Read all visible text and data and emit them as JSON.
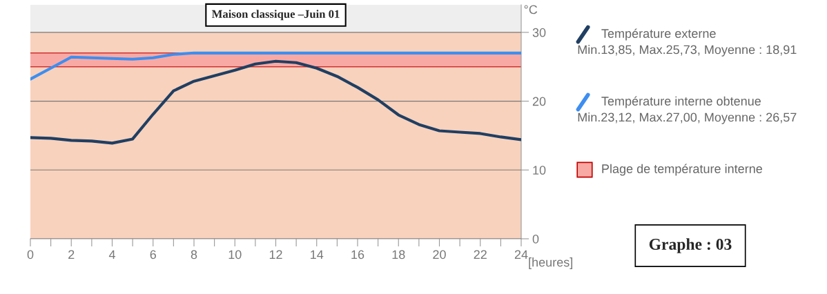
{
  "chart_data": {
    "type": "line",
    "title": "Maison classique –Juin 01",
    "xlabel": "[heures]",
    "ylabel": "°C",
    "x": [
      0,
      1,
      2,
      3,
      4,
      5,
      6,
      7,
      8,
      9,
      10,
      11,
      12,
      13,
      14,
      15,
      16,
      17,
      18,
      19,
      20,
      21,
      22,
      23,
      24
    ],
    "series": [
      {
        "name": "Température externe",
        "color": "#203f63",
        "values": [
          14.7,
          14.6,
          14.3,
          14.2,
          13.9,
          14.5,
          18.1,
          21.5,
          22.9,
          23.7,
          24.5,
          25.4,
          25.8,
          25.6,
          24.8,
          23.6,
          22.0,
          20.2,
          18.0,
          16.6,
          15.7,
          15.5,
          15.3,
          14.8,
          14.4
        ]
      },
      {
        "name": "Température interne obtenue",
        "color": "#3d8ef0",
        "values": [
          23.2,
          24.8,
          26.4,
          26.3,
          26.2,
          26.1,
          26.3,
          26.8,
          27.0,
          27.0,
          27.0,
          27.0,
          27.0,
          27.0,
          27.0,
          27.0,
          27.0,
          27.0,
          27.0,
          27.0,
          27.0,
          27.0,
          27.0,
          27.0,
          27.0
        ]
      }
    ],
    "bands": [
      {
        "axis": "y",
        "from": 0,
        "to": 30,
        "color": "#f8d2bd"
      },
      {
        "axis": "y",
        "from": 25,
        "to": 27,
        "label": "Plage de température interne",
        "color": "#f9a9a4"
      }
    ],
    "ref_lines": [
      {
        "axis": "y",
        "value": 25,
        "color": "#d03030"
      },
      {
        "axis": "y",
        "value": 27,
        "color": "#d03030"
      }
    ],
    "annotations": [
      "Min.13,85, Max.25,73, Moyenne : 18,91",
      "Min.23,12, Max.27,00, Moyenne : 26,57",
      "Graphe : 03"
    ],
    "xlim": [
      0,
      24
    ],
    "ylim": [
      0,
      34
    ],
    "xticks": [
      0,
      {
        "value": 1,
        "label": null
      },
      2,
      {
        "value": 3,
        "label": null
      },
      4,
      {
        "value": 5,
        "label": null
      },
      6,
      {
        "value": 7,
        "label": null
      },
      8,
      {
        "value": 9,
        "label": null
      },
      10,
      {
        "value": 11,
        "label": null
      },
      12,
      {
        "value": 13,
        "label": null
      },
      14,
      {
        "value": 15,
        "label": null
      },
      16,
      {
        "value": 17,
        "label": null
      },
      18,
      {
        "value": 19,
        "label": null
      },
      20,
      {
        "value": 21,
        "label": null
      },
      22,
      {
        "value": 23,
        "label": null
      },
      24
    ],
    "yticks": [
      0,
      10,
      20,
      30
    ],
    "grid": "y",
    "legend": "right",
    "marker": "none",
    "line_style": "solid"
  }
}
